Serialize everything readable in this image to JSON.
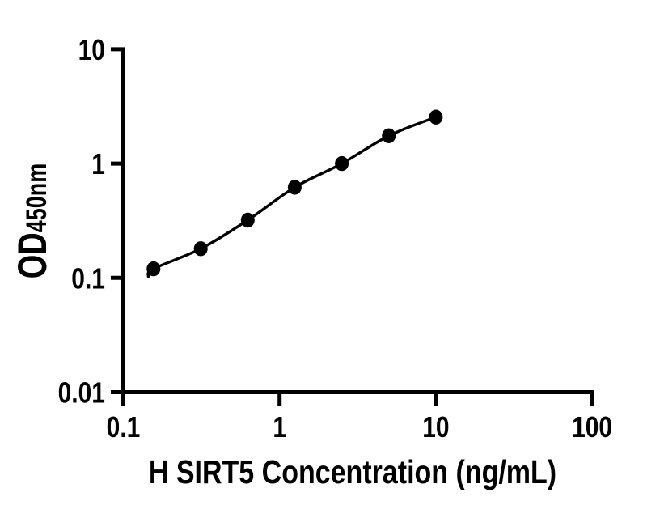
{
  "figure": {
    "background": "#ffffff",
    "ink_color": "#000000"
  },
  "chart_data": {
    "type": "scatter",
    "title": "",
    "xlabel": "H SIRT5 Concentration (ng/mL)",
    "ylabel_main": "OD",
    "ylabel_sub": "450nm",
    "x_scale": "log",
    "y_scale": "log",
    "xlim": [
      0.1,
      100
    ],
    "ylim": [
      0.01,
      10
    ],
    "x_ticks": {
      "values": [
        0.1,
        1,
        10,
        100
      ],
      "labels": [
        "0.1",
        "1",
        "10",
        "100"
      ]
    },
    "y_ticks": {
      "values": [
        10,
        1,
        0.1,
        0.01
      ],
      "labels": [
        "10",
        "1",
        "0.1",
        "0.01"
      ]
    },
    "series": [
      {
        "x": [
          0.156,
          0.313,
          0.625,
          1.25,
          2.5,
          5,
          10
        ],
        "y": [
          0.12,
          0.18,
          0.32,
          0.62,
          1.0,
          1.75,
          2.55
        ],
        "marker": "filled-circle",
        "line": "smooth",
        "color": "#000000"
      }
    ],
    "grid": false,
    "legend": "none"
  }
}
